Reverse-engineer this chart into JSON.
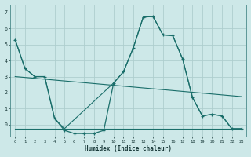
{
  "xlabel": "Humidex (Indice chaleur)",
  "background_color": "#cde8e8",
  "grid_color": "#aecece",
  "line_color": "#1a6e6a",
  "x_ticks": [
    0,
    1,
    2,
    3,
    4,
    5,
    6,
    7,
    8,
    9,
    10,
    11,
    12,
    13,
    14,
    15,
    16,
    17,
    18,
    19,
    20,
    21,
    22,
    23
  ],
  "y_ticks": [
    0,
    1,
    2,
    3,
    4,
    5,
    6,
    7
  ],
  "ylim": [
    -0.75,
    7.5
  ],
  "xlim": [
    -0.5,
    23.5
  ],
  "series_main": {
    "x": [
      0,
      1,
      2,
      3,
      4,
      5,
      6,
      7,
      8,
      9,
      10,
      11,
      12,
      13,
      14,
      15,
      16,
      17,
      18,
      19,
      20,
      21,
      22,
      23
    ],
    "y": [
      5.3,
      3.5,
      3.0,
      3.0,
      0.4,
      -0.35,
      -0.55,
      -0.55,
      -0.55,
      -0.35,
      2.6,
      3.3,
      4.8,
      6.7,
      6.75,
      5.6,
      5.55,
      4.1,
      1.7,
      0.55,
      0.65,
      0.55,
      -0.25,
      -0.25
    ]
  },
  "series_trend_upper": {
    "x": [
      0,
      23
    ],
    "y": [
      3.0,
      1.75
    ]
  },
  "series_trend_lower": {
    "x": [
      0,
      23
    ],
    "y": [
      -0.25,
      -0.25
    ]
  },
  "series_smooth": {
    "x": [
      0,
      1,
      2,
      3,
      4,
      5,
      10,
      11,
      12,
      13,
      14,
      15,
      16,
      17,
      18,
      19,
      20,
      21,
      22,
      23
    ],
    "y": [
      5.3,
      3.5,
      3.0,
      3.0,
      0.4,
      -0.25,
      2.6,
      3.3,
      4.8,
      6.7,
      6.75,
      5.6,
      5.55,
      4.1,
      1.7,
      0.55,
      0.65,
      0.55,
      -0.25,
      -0.25
    ]
  }
}
